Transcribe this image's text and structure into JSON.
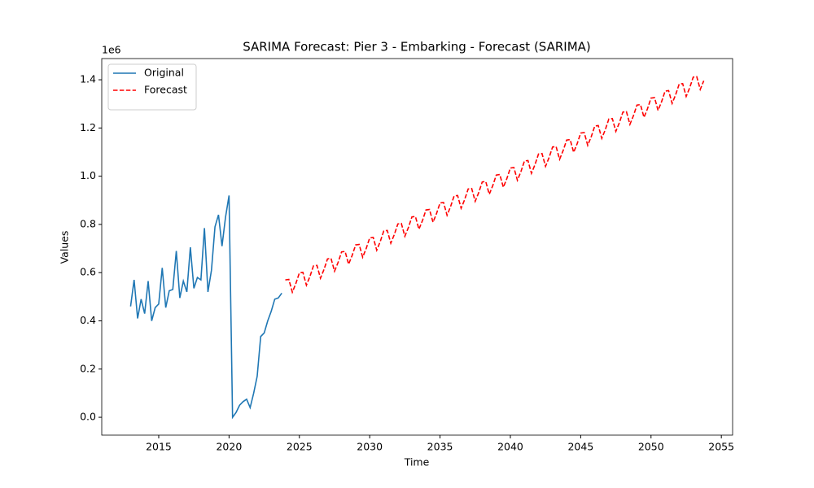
{
  "chart_data": {
    "type": "line",
    "title": "SARIMA Forecast: Pier 3 - Embarking - Forecast (SARIMA)",
    "x_label": "Time",
    "y_label": "Values",
    "y_offset_label": "1e6",
    "xlim": [
      2010.95,
      2055.8
    ],
    "xticks": [
      2015,
      2020,
      2025,
      2030,
      2035,
      2040,
      2045,
      2050,
      2055
    ],
    "ylim": [
      -0.074,
      1.488
    ],
    "yticks": [
      {
        "value": 0,
        "label": "0.0"
      },
      0.2,
      0.4,
      0.6,
      0.8,
      {
        "value": 1,
        "label": "1.0"
      },
      1.2,
      1.4
    ],
    "grid": false,
    "legend": "upper left",
    "series": [
      {
        "name": "Original",
        "color": "#1f77b4",
        "linestyle": "solid",
        "x": [
          2013.0,
          2013.25,
          2013.5,
          2013.75,
          2014.0,
          2014.25,
          2014.5,
          2014.75,
          2015.0,
          2015.25,
          2015.5,
          2015.75,
          2016.0,
          2016.25,
          2016.5,
          2016.75,
          2017.0,
          2017.25,
          2017.5,
          2017.75,
          2018.0,
          2018.25,
          2018.5,
          2018.75,
          2019.0,
          2019.25,
          2019.5,
          2019.75,
          2020.0,
          2020.25,
          2020.5,
          2020.75,
          2021.0,
          2021.25,
          2021.5,
          2021.75,
          2022.0,
          2022.25,
          2022.5,
          2022.75,
          2023.0,
          2023.25,
          2023.5,
          2023.75
        ],
        "values": [
          0.46,
          0.57,
          0.41,
          0.49,
          0.43,
          0.565,
          0.4,
          0.455,
          0.47,
          0.62,
          0.455,
          0.525,
          0.53,
          0.69,
          0.495,
          0.565,
          0.52,
          0.705,
          0.535,
          0.58,
          0.57,
          0.785,
          0.52,
          0.61,
          0.79,
          0.84,
          0.71,
          0.83,
          0.92,
          0.0,
          0.02,
          0.05,
          0.065,
          0.075,
          0.04,
          0.1,
          0.17,
          0.335,
          0.35,
          0.4,
          0.44,
          0.49,
          0.495,
          0.515
        ]
      },
      {
        "name": "Forecast",
        "color": "#ff0000",
        "linestyle": "dashed",
        "x": [
          2024.0,
          2024.25,
          2024.5,
          2024.75,
          2025.0,
          2025.25,
          2025.5,
          2025.75,
          2026.0,
          2026.25,
          2026.5,
          2026.75,
          2027.0,
          2027.25,
          2027.5,
          2027.75,
          2028.0,
          2028.25,
          2028.5,
          2028.75,
          2029.0,
          2029.25,
          2029.5,
          2029.75,
          2030.0,
          2030.25,
          2030.5,
          2030.75,
          2031.0,
          2031.25,
          2031.5,
          2031.75,
          2032.0,
          2032.25,
          2032.5,
          2032.75,
          2033.0,
          2033.25,
          2033.5,
          2033.75,
          2034.0,
          2034.25,
          2034.5,
          2034.75,
          2035.0,
          2035.25,
          2035.5,
          2035.75,
          2036.0,
          2036.25,
          2036.5,
          2036.75,
          2037.0,
          2037.25,
          2037.5,
          2037.75,
          2038.0,
          2038.25,
          2038.5,
          2038.75,
          2039.0,
          2039.25,
          2039.5,
          2039.75,
          2040.0,
          2040.25,
          2040.5,
          2040.75,
          2041.0,
          2041.25,
          2041.5,
          2041.75,
          2042.0,
          2042.25,
          2042.5,
          2042.75,
          2043.0,
          2043.25,
          2043.5,
          2043.75,
          2044.0,
          2044.25,
          2044.5,
          2044.75,
          2045.0,
          2045.25,
          2045.5,
          2045.75,
          2046.0,
          2046.25,
          2046.5,
          2046.75,
          2047.0,
          2047.25,
          2047.5,
          2047.75,
          2048.0,
          2048.25,
          2048.5,
          2048.75,
          2049.0,
          2049.25,
          2049.5,
          2049.75,
          2050.0,
          2050.25,
          2050.5,
          2050.75,
          2051.0,
          2051.25,
          2051.5,
          2051.75,
          2052.0,
          2052.25,
          2052.5,
          2052.75,
          2053.0,
          2053.25,
          2053.5,
          2053.75
        ],
        "values": [
          0.57,
          0.572,
          0.519,
          0.555,
          0.599,
          0.601,
          0.548,
          0.584,
          0.628,
          0.63,
          0.577,
          0.613,
          0.657,
          0.659,
          0.606,
          0.642,
          0.686,
          0.688,
          0.635,
          0.671,
          0.715,
          0.717,
          0.664,
          0.7,
          0.744,
          0.746,
          0.693,
          0.729,
          0.773,
          0.775,
          0.722,
          0.758,
          0.802,
          0.804,
          0.751,
          0.787,
          0.831,
          0.833,
          0.78,
          0.816,
          0.86,
          0.862,
          0.809,
          0.845,
          0.889,
          0.891,
          0.838,
          0.874,
          0.918,
          0.92,
          0.867,
          0.903,
          0.947,
          0.949,
          0.896,
          0.932,
          0.976,
          0.978,
          0.925,
          0.961,
          1.005,
          1.007,
          0.954,
          0.99,
          1.034,
          1.036,
          0.983,
          1.019,
          1.063,
          1.065,
          1.012,
          1.048,
          1.092,
          1.094,
          1.041,
          1.077,
          1.121,
          1.123,
          1.07,
          1.106,
          1.15,
          1.152,
          1.099,
          1.135,
          1.179,
          1.181,
          1.128,
          1.164,
          1.208,
          1.21,
          1.157,
          1.193,
          1.237,
          1.239,
          1.186,
          1.222,
          1.266,
          1.268,
          1.215,
          1.251,
          1.295,
          1.297,
          1.244,
          1.28,
          1.324,
          1.326,
          1.273,
          1.309,
          1.353,
          1.355,
          1.302,
          1.338,
          1.382,
          1.384,
          1.331,
          1.367,
          1.411,
          1.413,
          1.36,
          1.396
        ]
      }
    ]
  }
}
